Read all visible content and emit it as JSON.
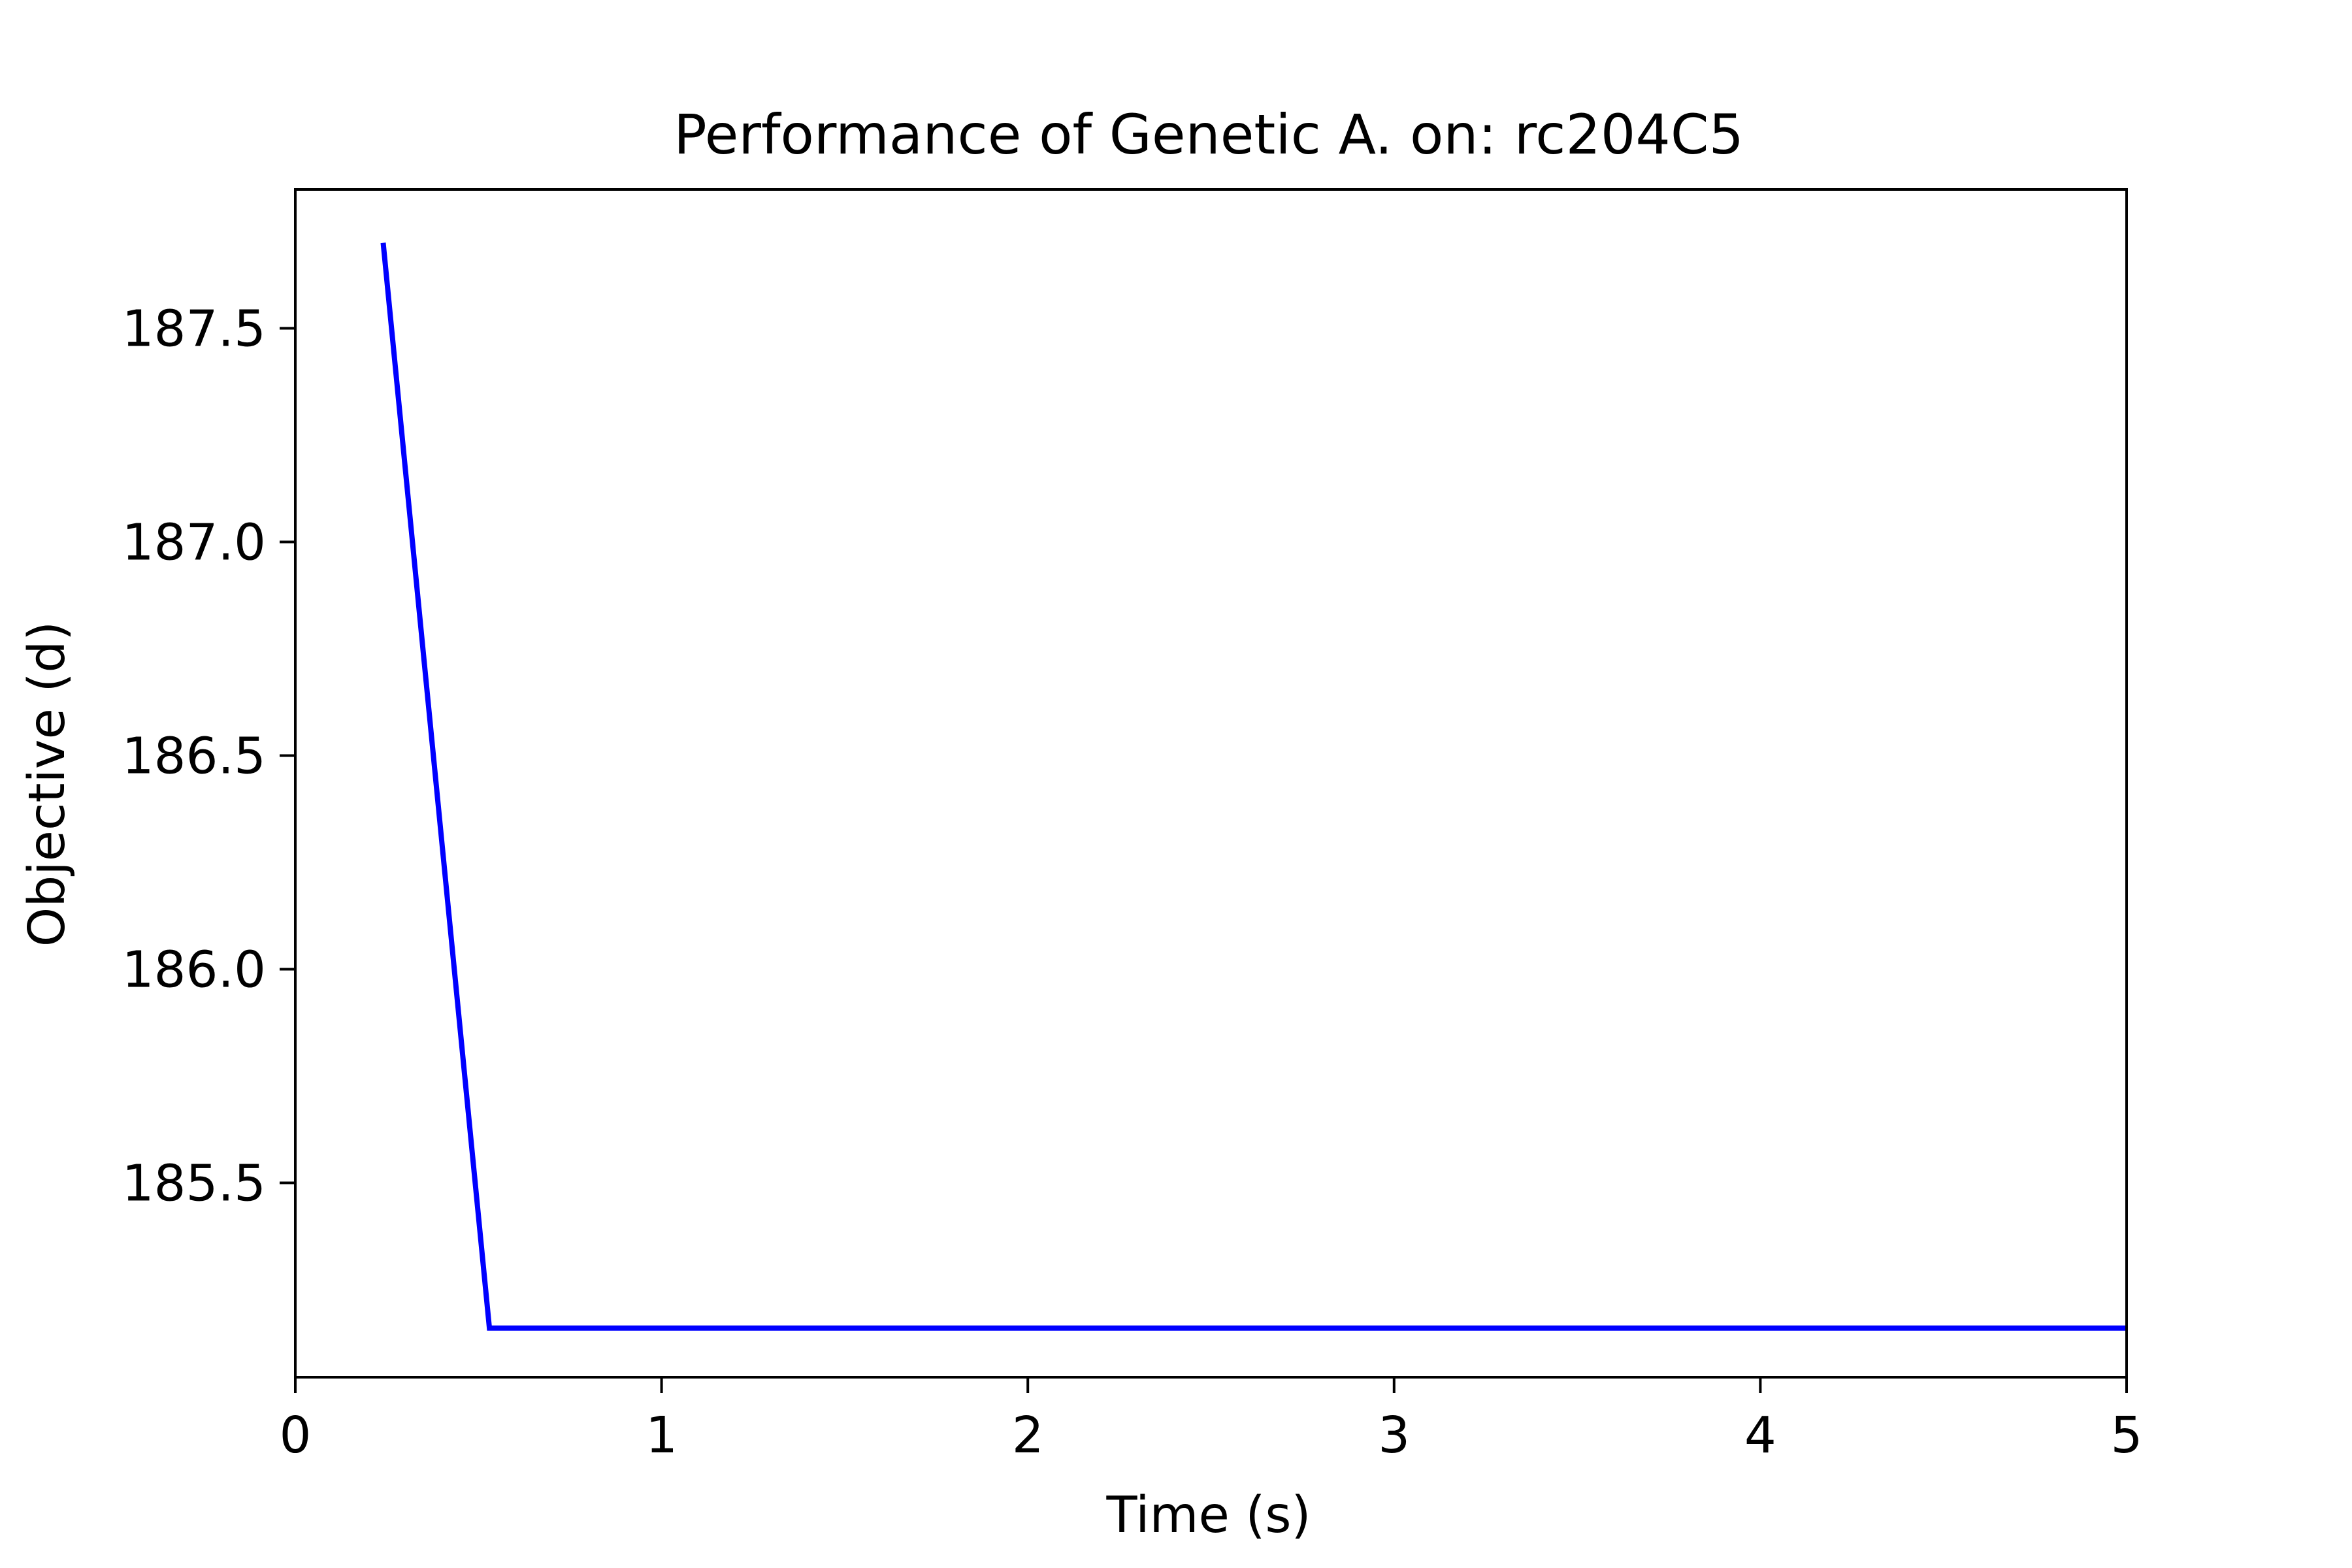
{
  "chart_data": {
    "type": "line",
    "title": "Performance of Genetic A. on: rc204C5",
    "xlabel": "Time (s)",
    "ylabel": "Objective (d)",
    "xlim": [
      0,
      5
    ],
    "ylim": [
      185.045,
      187.825
    ],
    "x_ticks": [
      {
        "value": 0,
        "label": "0"
      },
      {
        "value": 1,
        "label": "1"
      },
      {
        "value": 2,
        "label": "2"
      },
      {
        "value": 3,
        "label": "3"
      },
      {
        "value": 4,
        "label": "4"
      },
      {
        "value": 5,
        "label": "5"
      }
    ],
    "y_ticks": [
      {
        "value": 185.5,
        "label": "185.5"
      },
      {
        "value": 186.0,
        "label": "186.0"
      },
      {
        "value": 186.5,
        "label": "186.5"
      },
      {
        "value": 187.0,
        "label": "187.0"
      },
      {
        "value": 187.5,
        "label": "187.5"
      }
    ],
    "grid": false,
    "legend": "none",
    "series": [
      {
        "color": "#0000ff",
        "x": [
          0.24,
          0.53,
          5.0
        ],
        "y": [
          187.7,
          185.16,
          185.16
        ]
      }
    ]
  }
}
